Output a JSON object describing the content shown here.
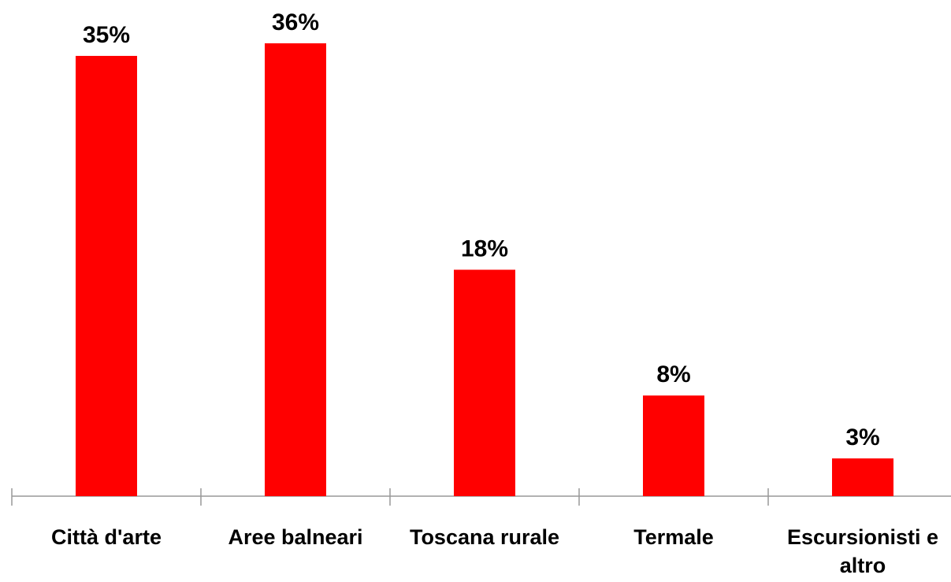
{
  "chart_data": {
    "type": "bar",
    "categories": [
      "Città d'arte",
      "Aree balneari",
      "Toscana rurale",
      "Termale",
      "Escursionisti e altro"
    ],
    "values": [
      35,
      36,
      18,
      8,
      3
    ],
    "value_labels": [
      "35%",
      "36%",
      "18%",
      "8%",
      "3%"
    ],
    "color": "#ff0000"
  }
}
